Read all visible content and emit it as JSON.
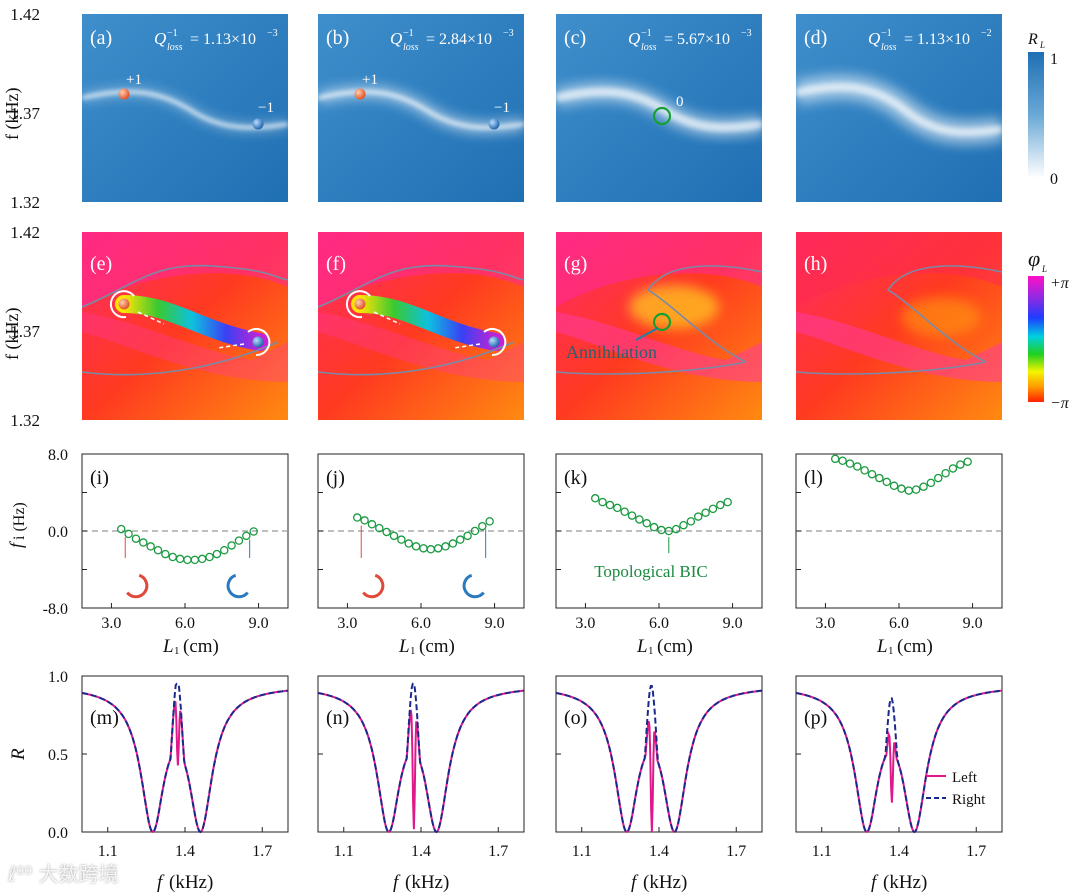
{
  "colorbar_R": {
    "symbol": "R",
    "sub": "L",
    "max": "1",
    "min": "0"
  },
  "colorbar_phi": {
    "symbol": "φ",
    "sub": "L",
    "max": "+π",
    "min": "−π"
  },
  "heatmap_rows": {
    "yticks": [
      "1.42",
      "1.37",
      "1.32"
    ],
    "ylabel_R": "f (kHz)",
    "ylabel_phi": "f (kHz)",
    "panels_R": [
      {
        "label": "(a)",
        "q_label": "Q",
        "q_value": "= 1.13×10",
        "q_exp": "−3",
        "q_sup": "−1",
        "q_sub": "loss",
        "charges": [
          "+1",
          "−1"
        ]
      },
      {
        "label": "(b)",
        "q_label": "Q",
        "q_value": "= 2.84×10",
        "q_exp": "−3",
        "q_sup": "−1",
        "q_sub": "loss",
        "charges": [
          "+1",
          "−1"
        ]
      },
      {
        "label": "(c)",
        "q_label": "Q",
        "q_value": "= 5.67×10",
        "q_exp": "−3",
        "q_sup": "−1",
        "q_sub": "loss",
        "charges": [
          "0"
        ]
      },
      {
        "label": "(d)",
        "q_label": "Q",
        "q_value": "= 1.13×10",
        "q_exp": "−2",
        "q_sup": "−1",
        "q_sub": "loss",
        "charges": []
      }
    ],
    "panels_phi": [
      {
        "label": "(e)"
      },
      {
        "label": "(f)"
      },
      {
        "label": "(g)",
        "annotation": "Annihilation"
      },
      {
        "label": "(h)"
      }
    ]
  },
  "chart_data": [
    {
      "type": "scatter",
      "title": "",
      "xlabel": "L1 (cm)",
      "ylabel": "fi (Hz)",
      "xlim": [
        1.8,
        10.2
      ],
      "ylim": [
        -8.0,
        8.0
      ],
      "yticks": [
        "8.0",
        "4.0",
        "0.0",
        "-4.0",
        "-8.0"
      ],
      "xticks": [
        "3.0",
        "6.0",
        "9.0"
      ],
      "panels": [
        {
          "label": "(i)",
          "x": [
            3.4,
            3.7,
            4.0,
            4.3,
            4.6,
            4.9,
            5.2,
            5.5,
            5.8,
            6.1,
            6.4,
            6.7,
            7.0,
            7.3,
            7.6,
            7.9,
            8.2,
            8.5,
            8.8
          ],
          "y": [
            0.2,
            -0.3,
            -0.8,
            -1.2,
            -1.6,
            -2.0,
            -2.4,
            -2.7,
            -2.9,
            -3.0,
            -3.0,
            -2.9,
            -2.7,
            -2.4,
            -2.0,
            -1.5,
            -1.0,
            -0.5,
            -0.05
          ],
          "annotation": ""
        },
        {
          "label": "(j)",
          "x": [
            3.4,
            3.7,
            4.0,
            4.3,
            4.6,
            4.9,
            5.2,
            5.5,
            5.8,
            6.1,
            6.4,
            6.7,
            7.0,
            7.3,
            7.6,
            7.9,
            8.2,
            8.5,
            8.8
          ],
          "y": [
            1.4,
            1.1,
            0.7,
            0.3,
            -0.1,
            -0.5,
            -0.9,
            -1.3,
            -1.6,
            -1.8,
            -1.9,
            -1.8,
            -1.6,
            -1.3,
            -0.9,
            -0.5,
            0.0,
            0.5,
            1.0
          ],
          "annotation": ""
        },
        {
          "label": "(k)",
          "x": [
            3.4,
            3.7,
            4.0,
            4.3,
            4.6,
            4.9,
            5.2,
            5.5,
            5.8,
            6.1,
            6.4,
            6.7,
            7.0,
            7.3,
            7.6,
            7.9,
            8.2,
            8.5,
            8.8
          ],
          "y": [
            3.4,
            3.0,
            2.7,
            2.4,
            2.0,
            1.6,
            1.2,
            0.8,
            0.4,
            0.1,
            0.0,
            0.2,
            0.6,
            1.0,
            1.5,
            1.9,
            2.3,
            2.7,
            3.0
          ],
          "annotation": "Topological BIC"
        },
        {
          "label": "(l)",
          "x": [
            3.4,
            3.7,
            4.0,
            4.3,
            4.6,
            4.9,
            5.2,
            5.5,
            5.8,
            6.1,
            6.4,
            6.7,
            7.0,
            7.3,
            7.6,
            7.9,
            8.2,
            8.5,
            8.8
          ],
          "y": [
            7.5,
            7.3,
            7.0,
            6.7,
            6.3,
            5.9,
            5.5,
            5.1,
            4.7,
            4.4,
            4.2,
            4.3,
            4.6,
            5.0,
            5.5,
            6.0,
            6.5,
            6.9,
            7.2
          ],
          "annotation": ""
        }
      ]
    },
    {
      "type": "line",
      "title": "",
      "xlabel": "f (kHz)",
      "ylabel": "R",
      "xlim": [
        1.0,
        1.8
      ],
      "ylim": [
        0.0,
        1.0
      ],
      "yticks": [
        "1.0",
        "0.5",
        "0.0"
      ],
      "xticks": [
        "1.1",
        "1.4",
        "1.7"
      ],
      "legend": {
        "position": "bottom-right",
        "entries": [
          "Left",
          "Right"
        ]
      },
      "series_colors": {
        "Left": "#e0198a",
        "Right": "#1a2a8c"
      },
      "panels": [
        {
          "label": "(m)",
          "dip_depth": 0.5,
          "left_peak": 0.93,
          "right_peak": 0.98
        },
        {
          "label": "(n)",
          "dip_depth": 0.86,
          "left_peak": 0.88,
          "right_peak": 0.96
        },
        {
          "label": "(o)",
          "dip_depth": 0.8,
          "left_peak": 0.8,
          "right_peak": 0.94
        },
        {
          "label": "(p)",
          "dip_depth": 0.51,
          "left_peak": 0.7,
          "right_peak": 0.86
        }
      ]
    }
  ],
  "watermark": "大数跨境"
}
